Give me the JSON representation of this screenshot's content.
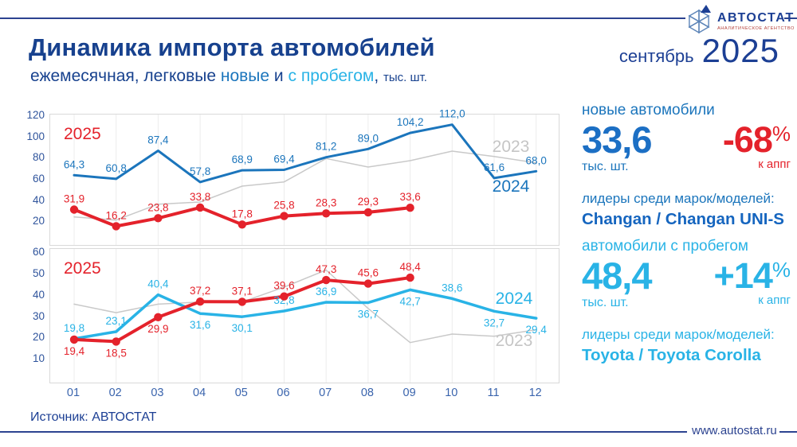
{
  "header": {
    "title": "Динамика импорта автомобилей",
    "subtitle_prefix": "ежемесячная, легковые ",
    "subtitle_new": "новые",
    "subtitle_and": " и ",
    "subtitle_used": "с пробегом",
    "subtitle_comma": ", ",
    "subtitle_unit": "тыс. шт.",
    "date_month": "сентябрь",
    "date_year": "2025",
    "logo": {
      "name": "АВТОСТАТ",
      "tagline": "АНАЛИТИЧЕСКОЕ АГЕНТСТВО"
    }
  },
  "chart_data": [
    {
      "id": "new-cars-monthly-imports",
      "type": "line",
      "x_labels": [
        "01",
        "02",
        "03",
        "04",
        "05",
        "06",
        "07",
        "08",
        "09",
        "10",
        "11",
        "12"
      ],
      "ylim": [
        0,
        120
      ],
      "yticks": [
        20,
        40,
        60,
        80,
        100,
        120
      ],
      "grid": "vertical",
      "series": [
        {
          "name": "2023",
          "color": "#c9c9c9",
          "width": 1.5,
          "markers": false,
          "show_labels": false,
          "values": [
            25,
            22,
            37,
            39,
            54,
            58,
            80,
            72,
            78,
            87,
            82,
            76
          ],
          "labels": [],
          "label_side": []
        },
        {
          "name": "2024",
          "color": "#1b75bc",
          "width": 3,
          "markers": false,
          "show_labels": true,
          "values": [
            64.3,
            60.8,
            87.4,
            57.8,
            68.9,
            69.4,
            81.2,
            89.0,
            104.2,
            112.0,
            61.6,
            68.0
          ],
          "labels": [
            "64,3",
            "60,8",
            "87,4",
            "57,8",
            "68,9",
            "69,4",
            "81,2",
            "89,0",
            "104,2",
            "112,0",
            "61,6",
            "68,0"
          ],
          "label_side": [
            "a",
            "a",
            "a",
            "a",
            "a",
            "a",
            "a",
            "a",
            "a",
            "a",
            "a",
            "a"
          ]
        },
        {
          "name": "2025",
          "color": "#e4222b",
          "width": 4,
          "markers": true,
          "show_labels": true,
          "values": [
            31.9,
            16.2,
            23.8,
            33.8,
            17.8,
            25.8,
            28.3,
            29.3,
            33.6
          ],
          "labels": [
            "31,9",
            "16,2",
            "23,8",
            "33,8",
            "17,8",
            "25,8",
            "28,3",
            "29,3",
            "33,6"
          ],
          "label_side": [
            "a",
            "a",
            "a",
            "a",
            "a",
            "a",
            "a",
            "a",
            "a"
          ]
        }
      ],
      "annotations": [
        {
          "text": "2025",
          "color": "#e4222b",
          "x": 17,
          "y": 31,
          "size": 21,
          "anchor": "start"
        },
        {
          "text": "2023",
          "color": "#c5c5c5",
          "x": 578,
          "y": 47,
          "size": 21,
          "anchor": "middle"
        },
        {
          "text": "2024",
          "color": "#1b75bc",
          "x": 578,
          "y": 97,
          "size": 21,
          "anchor": "middle"
        }
      ]
    },
    {
      "id": "used-cars-monthly-imports",
      "type": "line",
      "x_labels": [
        "01",
        "02",
        "03",
        "04",
        "05",
        "06",
        "07",
        "08",
        "09",
        "10",
        "11",
        "12"
      ],
      "ylim": [
        0,
        60
      ],
      "yticks": [
        10,
        20,
        30,
        40,
        50,
        60
      ],
      "grid": "vertical",
      "series": [
        {
          "name": "2023",
          "color": "#c9c9c9",
          "width": 1.5,
          "markers": false,
          "show_labels": false,
          "values": [
            36,
            32,
            36,
            37,
            37,
            44,
            52,
            34,
            18,
            22,
            21,
            24
          ],
          "labels": [],
          "label_side": []
        },
        {
          "name": "2024",
          "color": "#29b3e6",
          "width": 3.5,
          "markers": false,
          "show_labels": true,
          "values": [
            19.8,
            23.1,
            40.4,
            31.6,
            30.1,
            32.8,
            36.9,
            36.7,
            42.7,
            38.6,
            32.7,
            29.4
          ],
          "labels": [
            "19,8",
            "23,1",
            "40,4",
            "31,6",
            "30,1",
            "32,8",
            "36,9",
            "36,7",
            "42,7",
            "38,6",
            "32,7",
            "29,4"
          ],
          "label_side": [
            "a",
            "a",
            "a",
            "b",
            "b",
            "a",
            "a",
            "b",
            "b",
            "a",
            "b",
            "b"
          ]
        },
        {
          "name": "2025",
          "color": "#e4222b",
          "width": 4,
          "markers": true,
          "show_labels": true,
          "values": [
            19.4,
            18.5,
            29.9,
            37.2,
            37.1,
            39.6,
            47.3,
            45.6,
            48.4
          ],
          "labels": [
            "19,4",
            "18,5",
            "29,9",
            "37,2",
            "37,1",
            "39,6",
            "47,3",
            "45,6",
            "48,4"
          ],
          "label_side": [
            "b",
            "b",
            "b",
            "a",
            "a",
            "a",
            "a",
            "a",
            "a"
          ]
        }
      ],
      "annotations": [
        {
          "text": "2025",
          "color": "#e4222b",
          "x": 17,
          "y": 31,
          "size": 21,
          "anchor": "start"
        },
        {
          "text": "2024",
          "color": "#29b3e6",
          "x": 582,
          "y": 69,
          "size": 21,
          "anchor": "middle"
        },
        {
          "text": "2023",
          "color": "#c5c5c5",
          "x": 582,
          "y": 122,
          "size": 21,
          "anchor": "middle"
        }
      ]
    }
  ],
  "sidebar": {
    "new": {
      "heading": "новые автомобили",
      "value": "33,6",
      "unit": "тыс. шт.",
      "change_value": "-68",
      "change_pct_sign": "%",
      "change_note": "к аппг",
      "leaders_label": "лидеры среди марок/моделей:",
      "leaders": "Changan / Changan UNI-S",
      "accent": "#1b75bc"
    },
    "used": {
      "heading": "автомобили с пробегом",
      "value": "48,4",
      "unit": "тыс. шт.",
      "change_value": "+14",
      "change_pct_sign": "%",
      "change_note": "к аппг",
      "leaders_label": "лидеры среди марок/моделей:",
      "leaders": "Toyota / Toyota Corolla",
      "accent": "#29b3e6"
    }
  },
  "footer": {
    "source": "Источник: АВТОСТАТ",
    "website": "www.autostat.ru"
  },
  "colors": {
    "navy": "#17418e",
    "blue_2024_new": "#1b75bc",
    "cyan_2024_used": "#29b3e6",
    "red_2025": "#e4222b",
    "gray_2023": "#c9c9c9"
  }
}
